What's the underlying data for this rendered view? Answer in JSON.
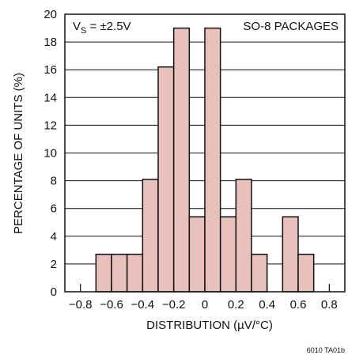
{
  "chart_data": {
    "type": "bar",
    "title": "",
    "xlabel": "DISTRIBUTION (µV/°C)",
    "ylabel": "PERCENTAGE OF UNITS (%)",
    "xlim": [
      -0.9,
      0.9
    ],
    "ylim": [
      0,
      20
    ],
    "x_ticks": [
      -0.8,
      -0.6,
      -0.4,
      -0.2,
      0,
      0.2,
      0.4,
      0.6,
      0.8
    ],
    "x_tick_labels": [
      "−0.8",
      "−0.6",
      "−0.4",
      "−0.2",
      "0",
      "0.2",
      "0.4",
      "0.6",
      "0.8"
    ],
    "y_ticks": [
      0,
      2,
      4,
      6,
      8,
      10,
      12,
      14,
      16,
      18,
      20
    ],
    "y_tick_labels": [
      "0",
      "2",
      "4",
      "6",
      "8",
      "10",
      "12",
      "14",
      "16",
      "18",
      "20"
    ],
    "bin_width": 0.1,
    "bins": [
      {
        "x_start": -0.7,
        "x_end": -0.6,
        "value": 2.7
      },
      {
        "x_start": -0.6,
        "x_end": -0.5,
        "value": 2.7
      },
      {
        "x_start": -0.5,
        "x_end": -0.4,
        "value": 2.7
      },
      {
        "x_start": -0.4,
        "x_end": -0.3,
        "value": 8.1
      },
      {
        "x_start": -0.3,
        "x_end": -0.2,
        "value": 16.2
      },
      {
        "x_start": -0.2,
        "x_end": -0.1,
        "value": 19.0
      },
      {
        "x_start": -0.1,
        "x_end": 0.0,
        "value": 5.4
      },
      {
        "x_start": 0.0,
        "x_end": 0.1,
        "value": 19.0
      },
      {
        "x_start": 0.1,
        "x_end": 0.2,
        "value": 5.4
      },
      {
        "x_start": 0.2,
        "x_end": 0.3,
        "value": 8.1
      },
      {
        "x_start": 0.3,
        "x_end": 0.4,
        "value": 2.7
      },
      {
        "x_start": 0.5,
        "x_end": 0.6,
        "value": 5.4
      },
      {
        "x_start": 0.6,
        "x_end": 0.7,
        "value": 2.7
      }
    ],
    "grid": true,
    "annotations": {
      "condition_prefix": "V",
      "condition_subscript": "S",
      "condition_value": " = ±2.5V",
      "package": "SO-8 PACKAGES"
    },
    "figure_id": "6010 TA01b",
    "colors": {
      "bar_fill": "#e8c0bc",
      "bar_stroke": "#111111",
      "grid": "#111111",
      "axis": "#111111"
    }
  }
}
